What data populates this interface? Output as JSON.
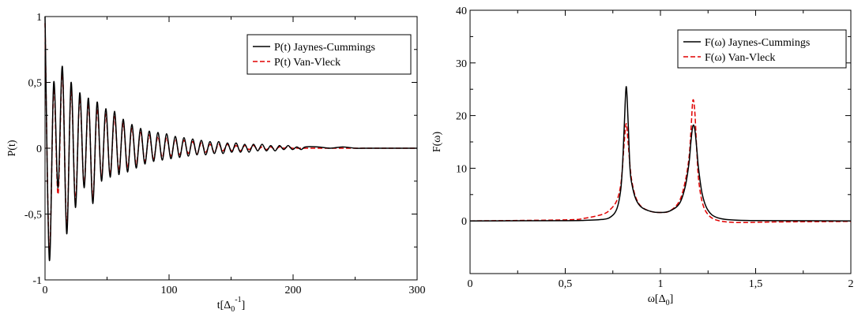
{
  "chart_data": [
    {
      "type": "line",
      "xlim": [
        0,
        300
      ],
      "ylim": [
        -1,
        1
      ],
      "xticks": [
        0,
        100,
        200,
        300
      ],
      "yticks": [
        -1,
        -0.5,
        0,
        0.5,
        1
      ],
      "xtick_labels": [
        "0",
        "100",
        "200",
        "300"
      ],
      "ytick_labels": [
        "-1",
        "-0,5",
        "0",
        "0,5",
        "1"
      ],
      "ylabel": "P(t)",
      "xlabel": {
        "base": "t[Δ",
        "sub": "0",
        "sup": "-1",
        "close": "]"
      },
      "legend_position": "top-right",
      "grid": false,
      "colors": {
        "jc": "#000000",
        "vv": "#e00000"
      },
      "series": [
        {
          "name": "P(t) Jaynes-Cummings",
          "style": "solid",
          "x": [
            0,
            3.5,
            7,
            10.5,
            14,
            17.5,
            21,
            24.5,
            28,
            31.5,
            35,
            38.5,
            42,
            45.5,
            49,
            52.5,
            56,
            59.5,
            63,
            66.5,
            70,
            73.5,
            77,
            80.5,
            84,
            87.5,
            91,
            94.5,
            98,
            101.5,
            105,
            108.5,
            112,
            115.5,
            119,
            122.5,
            126,
            129.5,
            133,
            136.5,
            140,
            143.5,
            147,
            150.5,
            154,
            157.5,
            161,
            164.5,
            168,
            171.5,
            175,
            178.5,
            182,
            185.5,
            189,
            192.5,
            196,
            199.5,
            203,
            206.5,
            210,
            220,
            230,
            240,
            250,
            260,
            270,
            280,
            290,
            300
          ],
          "y": [
            1.0,
            -0.85,
            0.5,
            -0.3,
            0.62,
            -0.65,
            0.5,
            -0.45,
            0.42,
            -0.3,
            0.38,
            -0.42,
            0.35,
            -0.25,
            0.3,
            -0.22,
            0.28,
            -0.2,
            0.22,
            -0.18,
            0.18,
            -0.15,
            0.15,
            -0.12,
            0.13,
            -0.1,
            0.12,
            -0.09,
            0.11,
            -0.08,
            0.09,
            -0.07,
            0.08,
            -0.06,
            0.07,
            -0.05,
            0.06,
            -0.05,
            0.05,
            -0.04,
            0.05,
            -0.04,
            0.04,
            -0.03,
            0.04,
            -0.03,
            0.03,
            -0.03,
            0.03,
            -0.02,
            0.03,
            -0.02,
            0.02,
            -0.02,
            0.02,
            -0.01,
            0.02,
            -0.01,
            0.01,
            -0.01,
            0.01,
            0.01,
            0.0,
            0.01,
            0.0,
            0.0,
            0.0,
            0.0,
            0.0,
            0.0
          ]
        },
        {
          "name": "P(t) Van-Vleck",
          "style": "dashed",
          "x": [
            0,
            3.5,
            7,
            10.5,
            14,
            17.5,
            21,
            24.5,
            28,
            31.5,
            35,
            38.5,
            42,
            45.5,
            49,
            52.5,
            56,
            59.5,
            63,
            66.5,
            70,
            73.5,
            77,
            80.5,
            84,
            87.5,
            91,
            94.5,
            98,
            101.5,
            105,
            108.5,
            112,
            115.5,
            119,
            122.5,
            126,
            129.5,
            133,
            136.5,
            140,
            143.5,
            147,
            150.5,
            154,
            157.5,
            161,
            164.5,
            168,
            171.5,
            175,
            178.5,
            182,
            185.5,
            189,
            192.5,
            196,
            199.5,
            203,
            206.5,
            210,
            220,
            230,
            240,
            250,
            260,
            270,
            280,
            290,
            300
          ],
          "y": [
            0.95,
            -0.8,
            0.45,
            -0.35,
            0.58,
            -0.6,
            0.45,
            -0.4,
            0.38,
            -0.28,
            0.34,
            -0.38,
            0.3,
            -0.22,
            0.26,
            -0.2,
            0.24,
            -0.17,
            0.19,
            -0.15,
            0.15,
            -0.12,
            0.12,
            -0.1,
            0.1,
            -0.08,
            0.09,
            -0.07,
            0.08,
            -0.06,
            0.07,
            -0.05,
            0.06,
            -0.04,
            0.05,
            -0.04,
            0.04,
            -0.03,
            0.03,
            -0.03,
            0.03,
            -0.02,
            0.03,
            -0.02,
            0.02,
            -0.02,
            0.02,
            -0.01,
            0.02,
            -0.01,
            0.01,
            -0.01,
            0.01,
            -0.01,
            0.01,
            0.0,
            0.01,
            0.0,
            0.0,
            0.0,
            0.0,
            0.0,
            0.0,
            0.0,
            0.0,
            0.0,
            0.0,
            0.0,
            0.0,
            0.0
          ]
        }
      ]
    },
    {
      "type": "line",
      "xlim": [
        0,
        2
      ],
      "ylim": [
        -10,
        40
      ],
      "xticks": [
        0,
        0.5,
        1,
        1.5,
        2
      ],
      "yticks": [
        0,
        10,
        20,
        30,
        40
      ],
      "xtick_labels": [
        "0",
        "0,5",
        "1",
        "1,5",
        "2"
      ],
      "ytick_labels": [
        "0",
        "10",
        "20",
        "30",
        "40"
      ],
      "ylabel": "F(ω)",
      "xlabel": {
        "base": "ω[Δ",
        "sub": "0",
        "sup": "",
        "close": "]"
      },
      "legend_position": "top-right",
      "grid": false,
      "colors": {
        "jc": "#000000",
        "vv": "#e00000"
      },
      "series": [
        {
          "name": "F(ω) Jaynes-Cummings",
          "style": "solid",
          "x": [
            0,
            0.5,
            0.6,
            0.7,
            0.74,
            0.77,
            0.79,
            0.8,
            0.81,
            0.82,
            0.83,
            0.84,
            0.85,
            0.87,
            0.9,
            0.95,
            1.0,
            1.05,
            1.1,
            1.13,
            1.15,
            1.16,
            1.17,
            1.18,
            1.19,
            1.2,
            1.22,
            1.25,
            1.3,
            1.4,
            1.6,
            2.0
          ],
          "y": [
            0,
            0.05,
            0.1,
            0.3,
            0.8,
            2.2,
            5.5,
            10,
            18,
            25.5,
            19,
            10,
            7,
            4.2,
            2.6,
            1.8,
            1.6,
            1.9,
            3.3,
            6.5,
            11,
            15,
            18,
            17.5,
            14,
            10,
            5,
            2,
            0.6,
            0.15,
            0.05,
            0
          ]
        },
        {
          "name": "F(ω) Van-Vleck",
          "style": "dashed",
          "x": [
            0,
            0.5,
            0.6,
            0.7,
            0.74,
            0.77,
            0.79,
            0.8,
            0.81,
            0.82,
            0.83,
            0.84,
            0.85,
            0.87,
            0.9,
            0.95,
            1.0,
            1.05,
            1.1,
            1.13,
            1.15,
            1.16,
            1.17,
            1.18,
            1.19,
            1.2,
            1.22,
            1.25,
            1.3,
            1.4,
            1.6,
            2.0
          ],
          "y": [
            0,
            0.2,
            0.5,
            1.3,
            2.3,
            3.8,
            6.5,
            10,
            15,
            18.5,
            15,
            10.5,
            7.5,
            4.5,
            2.7,
            1.8,
            1.6,
            1.9,
            3.8,
            7.5,
            12,
            17,
            22.8,
            21,
            14,
            8,
            3.5,
            1.2,
            0.1,
            -0.3,
            -0.2,
            -0.1
          ]
        }
      ],
      "description_note": ""
    }
  ]
}
